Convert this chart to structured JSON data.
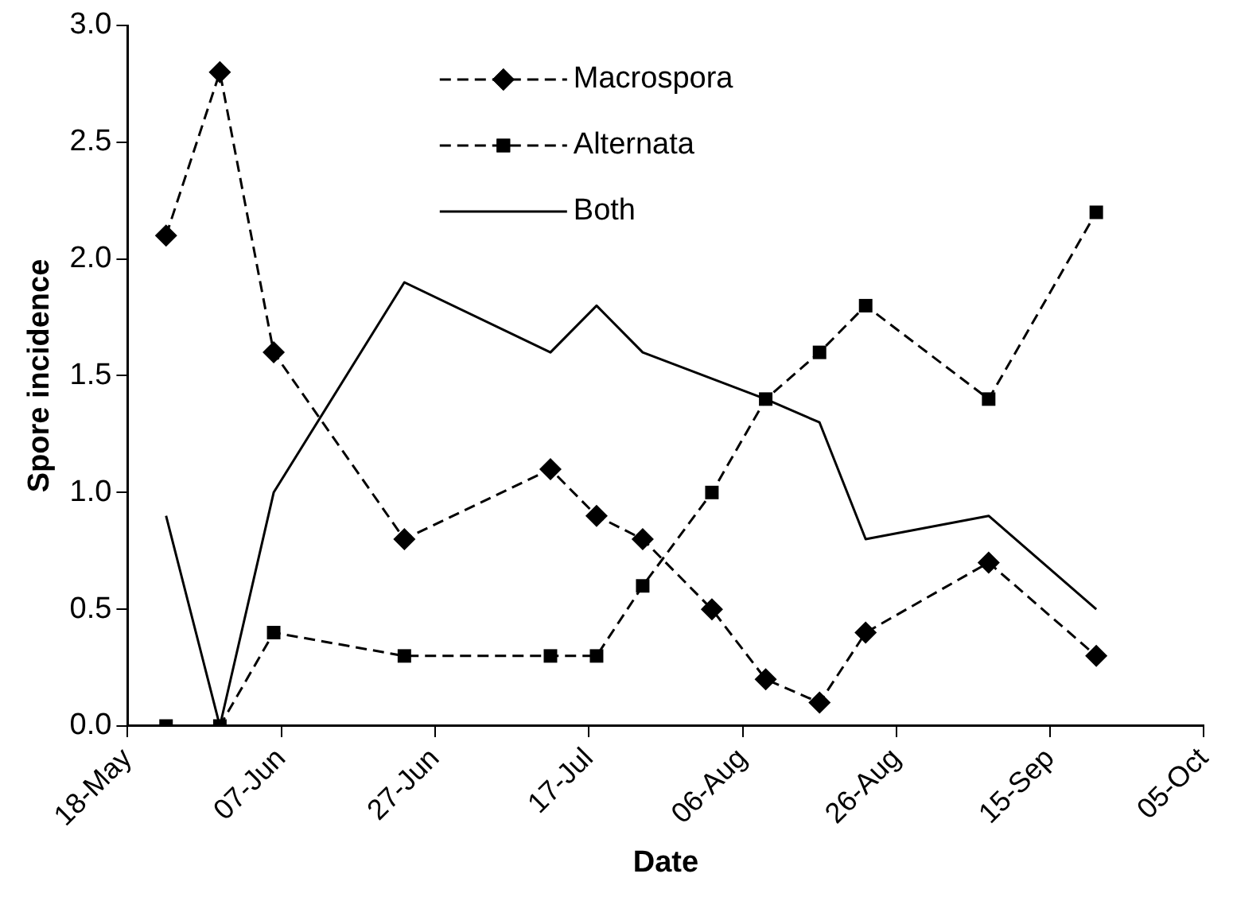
{
  "chart_data": {
    "type": "line",
    "xlabel": "Date",
    "ylabel": "Spore incidence",
    "x": [
      "--05-23",
      "--05-30",
      "--06-06",
      "--06-23",
      "--07-12",
      "--07-18",
      "--07-24",
      "--08-02",
      "--08-09",
      "--08-16",
      "--08-22",
      "--09-07",
      "--09-21"
    ],
    "series": [
      {
        "name": "Macrospora",
        "color": "#000000",
        "marker": "diamond",
        "line_style": "dashed",
        "values": [
          2.1,
          2.8,
          1.6,
          0.8,
          1.1,
          0.9,
          0.8,
          0.5,
          0.2,
          0.1,
          0.4,
          0.7,
          0.3
        ]
      },
      {
        "name": "Alternata",
        "color": "#000000",
        "marker": "square",
        "line_style": "dashed",
        "values": [
          0,
          0,
          0.4,
          0.3,
          0.3,
          0.3,
          0.6,
          1.0,
          1.4,
          1.6,
          1.8,
          1.4,
          2.2
        ]
      },
      {
        "name": "Both",
        "color": "#000000",
        "marker": "none",
        "line_style": "solid",
        "values": [
          0.9,
          0,
          1.0,
          1.9,
          1.6,
          1.8,
          1.6,
          null,
          1.4,
          1.3,
          0.8,
          0.9,
          0.5
        ]
      }
    ],
    "xlim": [
      "--05-18",
      "--10-05"
    ],
    "xticks": [
      {
        "value": "--05-18",
        "label": "18-May"
      },
      {
        "value": "--06-07",
        "label": "07-Jun"
      },
      {
        "value": "--06-27",
        "label": "27-Jun"
      },
      {
        "value": "--07-17",
        "label": "17-Jul"
      },
      {
        "value": "--08-06",
        "label": "06-Aug"
      },
      {
        "value": "--08-26",
        "label": "26-Aug"
      },
      {
        "value": "--09-15",
        "label": "15-Sep"
      },
      {
        "value": "--10-05",
        "label": "05-Oct"
      }
    ],
    "ylim": [
      0,
      3
    ],
    "yticks": [
      {
        "value": 0,
        "label": "0.0"
      },
      {
        "value": 0.5,
        "label": "0.5"
      },
      {
        "value": 1,
        "label": "1.0"
      },
      {
        "value": 1.5,
        "label": "1.5"
      },
      {
        "value": 2,
        "label": "2.0"
      },
      {
        "value": 2.5,
        "label": "2.5"
      },
      {
        "value": 3,
        "label": "3.0"
      }
    ],
    "grid": false,
    "legend": "top"
  }
}
